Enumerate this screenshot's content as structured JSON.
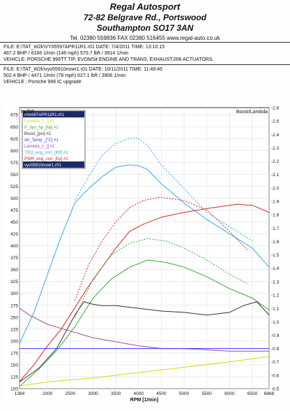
{
  "header": {
    "company": "Regal Autosport",
    "address1": "72-82 Belgrave Rd., Portswood",
    "address2": "Southampton SO17 3AN",
    "contact": "Tel. 02380 559836    FAX 02380 516455    www.regal-auto.co.uk"
  },
  "run1": {
    "file_line": "FILE: E:\\TAT_W2k\\VY05597APR11R1.r01  DATE: 7/4/2011  TIME: 13:10:15",
    "result_line": "487.2 BHP / 6166 1/min (148 mph)   570.7 lbft / 3914 1/min",
    "vehicle_line": "VEHICLE: PORSCHE 996TT TIP, EVOMSit ENGINE AND TRANS, EXHAUST,006 ACTUATORS."
  },
  "run2": {
    "file_line": "FILE: E:\\TAT_W2k\\vyo55910nowr1.r01  DATE: 10/11/2011  TIME: 11:49:45",
    "result_line": "502.4 BHP / 4471 1/min (78 mph)   627.1 lbft / 3906 1/min",
    "vehicle_line": "VEHICLE : Porsche 996 IC upgrade"
  },
  "chart_data": {
    "type": "line",
    "xlabel": "RPM  [1/min]",
    "left_unit": "hp/lbft",
    "right_unit": "Boost/Lambda",
    "xlim": [
      1384,
      6868
    ],
    "ylim_left": [
      100,
      690
    ],
    "ylim_right": [
      -0.5,
      -2.6
    ],
    "x_ticks": [
      1384,
      2000,
      2500,
      3000,
      3500,
      4000,
      4500,
      5000,
      5500,
      6000,
      6500,
      6868
    ],
    "y_ticks_left": [
      100,
      125,
      150,
      175,
      200,
      225,
      250,
      275,
      300,
      325,
      350,
      375,
      400,
      425,
      450,
      475,
      500,
      525,
      550,
      575,
      600,
      625,
      650,
      675
    ],
    "y_ticks_right": [
      -0.5,
      -0.6,
      -0.7,
      -0.8,
      -0.9,
      -1.0,
      -1.1,
      -1.2,
      -1.3,
      -1.4,
      -1.5,
      -1.6,
      -1.7,
      -1.8,
      -1.9,
      -2.0,
      -2.1,
      -2.2,
      -2.3,
      -2.4,
      -2.5,
      -2.6
    ],
    "grid": true,
    "legend_position": "top-left",
    "legend": [
      {
        "label": "r/05597APR11R1.r01",
        "color": "#ffffff",
        "selected": true
      },
      {
        "label": "Lambda_1_[] #1",
        "color": "#d8d800"
      },
      {
        "label": "P_dyn_hp_[hp] #1",
        "color": "#33aa33"
      },
      {
        "label": "Boost_[psi] #2",
        "color": "#333333"
      },
      {
        "label": "Air_Temp._[°C] #1",
        "color": "#3333ff"
      },
      {
        "label": "Lambda_1_[] #2",
        "color": "#aa44aa"
      },
      {
        "label": "TRQ_eng_corr_[lbft] #1",
        "color": "#33aaee"
      },
      {
        "label": "PWR_eng_corr_[hp] #1",
        "color": "#dd2222"
      },
      {
        "label": "vyo55910nowr1.r01",
        "color": "#ffffff",
        "selected": true
      }
    ],
    "series": [
      {
        "name": "TRQ_eng_corr_[lbft] #1",
        "axis": "left",
        "color": "#33aaee",
        "style": "solid",
        "x": [
          1384,
          1700,
          2000,
          2300,
          2600,
          2900,
          3200,
          3500,
          3800,
          4000,
          4200,
          4500,
          5000,
          5500,
          6000,
          6500,
          6868
        ],
        "y": [
          195,
          260,
          340,
          420,
          490,
          520,
          545,
          565,
          570,
          568,
          560,
          530,
          490,
          455,
          425,
          395,
          355
        ]
      },
      {
        "name": "TRQ_eng_corr_[lbft] #1 (run 2)",
        "axis": "left",
        "color": "#33aaee",
        "style": "dashed",
        "x": [
          2600,
          2900,
          3200,
          3500,
          3800,
          3906,
          4000,
          4200,
          4500,
          5000,
          5500,
          6000,
          6500
        ],
        "y": [
          495,
          545,
          590,
          615,
          625,
          627,
          625,
          610,
          570,
          520,
          470,
          440,
          410
        ]
      },
      {
        "name": "PWR_eng_corr_[hp] #1",
        "axis": "left",
        "color": "#dd2222",
        "style": "solid",
        "x": [
          1384,
          1700,
          2000,
          2300,
          2600,
          2900,
          3200,
          3500,
          3800,
          4100,
          4500,
          5000,
          5500,
          6000,
          6166,
          6500,
          6868
        ],
        "y": [
          115,
          150,
          190,
          225,
          270,
          315,
          355,
          395,
          430,
          445,
          460,
          470,
          478,
          485,
          487,
          485,
          470
        ]
      },
      {
        "name": "PWR_eng_corr_[hp] #1 (run 2)",
        "axis": "left",
        "color": "#dd2222",
        "style": "dashed",
        "x": [
          2600,
          2900,
          3200,
          3500,
          3800,
          4100,
          4471,
          5000,
          5500,
          6000,
          6400
        ],
        "y": [
          285,
          360,
          410,
          450,
          480,
          495,
          502,
          495,
          475,
          430,
          390
        ]
      },
      {
        "name": "P_dyn_hp_[hp] #1",
        "axis": "left",
        "color": "#33aa33",
        "style": "solid",
        "x": [
          1384,
          1800,
          2200,
          2600,
          3000,
          3400,
          3800,
          4200,
          4600,
          5000,
          5500,
          6000,
          6500,
          6868
        ],
        "y": [
          105,
          140,
          180,
          230,
          290,
          330,
          355,
          370,
          365,
          355,
          335,
          310,
          290,
          265
        ]
      },
      {
        "name": "P_dyn_hp_[hp] #1 (run 2)",
        "axis": "left",
        "color": "#33aa33",
        "style": "dashed",
        "x": [
          2600,
          3000,
          3400,
          3800,
          4200,
          4600,
          5000,
          5500,
          6000,
          6400
        ],
        "y": [
          250,
          330,
          380,
          405,
          415,
          410,
          395,
          370,
          340,
          320
        ]
      },
      {
        "name": "Boost_[psi] #2",
        "axis": "right",
        "color": "#333333",
        "style": "solid",
        "x": [
          1384,
          1800,
          2200,
          2600,
          2800,
          3000,
          3200,
          3500,
          4000,
          4500,
          5000,
          5500,
          6000,
          6300,
          6600,
          6868
        ],
        "y": [
          -0.55,
          -0.65,
          -0.8,
          -1.05,
          -1.15,
          -1.13,
          -1.12,
          -1.12,
          -1.1,
          -1.08,
          -1.07,
          -1.05,
          -1.07,
          -1.12,
          -1.15,
          -1.05
        ]
      },
      {
        "name": "Lambda_1_[] #2",
        "axis": "right",
        "color": "#aa44aa",
        "style": "solid",
        "x": [
          1384,
          1600,
          2000,
          2500,
          3000,
          3500,
          4000,
          4500,
          5000,
          5500,
          6000,
          6500,
          6868
        ],
        "y": [
          -1.1,
          -1.05,
          -0.98,
          -0.93,
          -0.88,
          -0.85,
          -0.82,
          -0.8,
          -0.8,
          -0.79,
          -0.78,
          -0.78,
          -0.78
        ]
      },
      {
        "name": "Lambda_1_[] #1",
        "axis": "right",
        "color": "#d8d800",
        "style": "solid",
        "x": [
          1384,
          2000,
          3000,
          4000,
          5000,
          6000,
          6868
        ],
        "y": [
          -0.52,
          -0.55,
          -0.58,
          -0.62,
          -0.66,
          -0.7,
          -0.74
        ]
      },
      {
        "name": "Air_Temp._[°C] #1",
        "axis": "right",
        "color": "#3333ff",
        "style": "solid",
        "x": [
          1384,
          2000,
          3000,
          4000,
          5000,
          6000,
          6868
        ],
        "y": [
          -0.8,
          -0.8,
          -0.8,
          -0.8,
          -0.8,
          -0.8,
          -0.8
        ]
      }
    ]
  }
}
